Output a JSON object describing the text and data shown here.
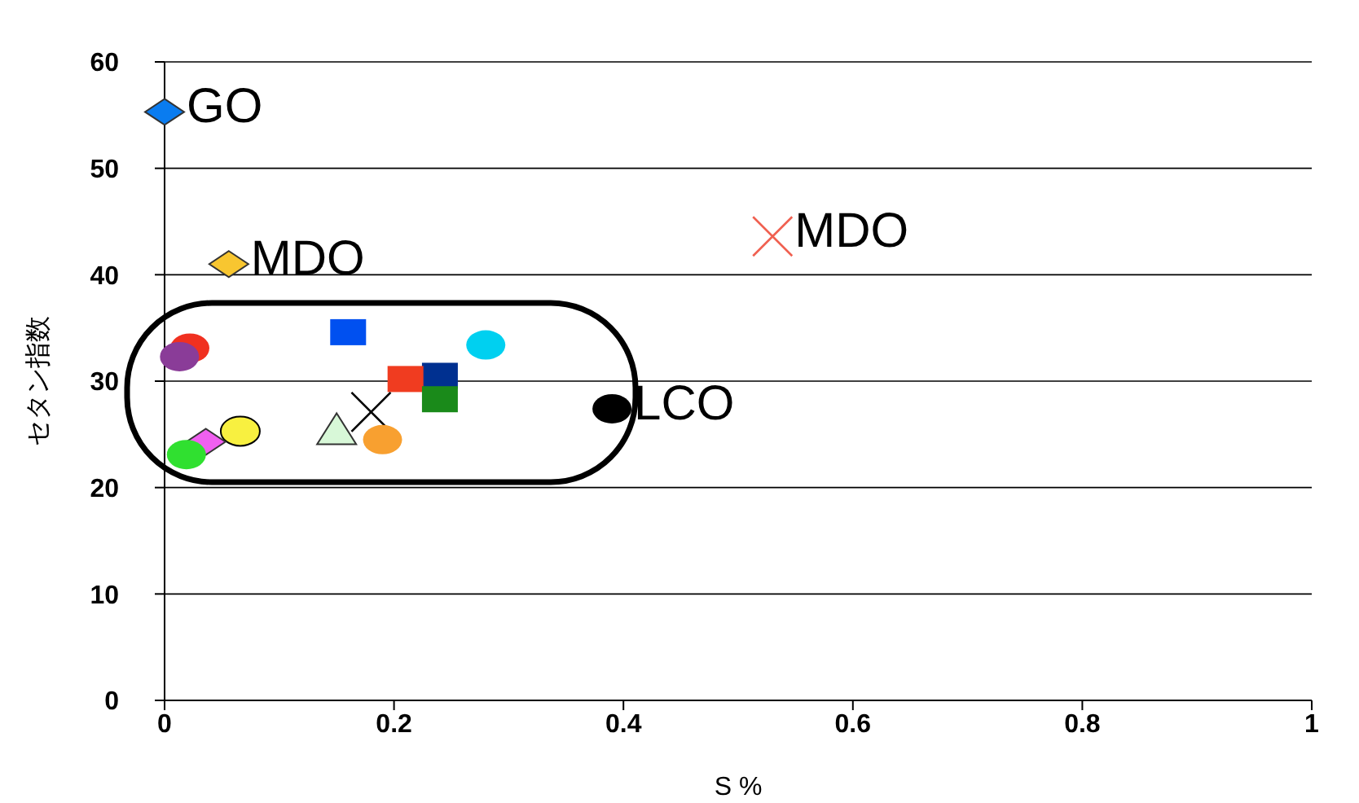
{
  "chart_data": {
    "type": "scatter",
    "xlabel": "S %",
    "ylabel": "セタン指数",
    "xlim": [
      0,
      1
    ],
    "xticks": [
      0,
      0.2,
      0.4,
      0.6,
      0.8,
      1
    ],
    "ylim": [
      0,
      60
    ],
    "yticks": [
      0,
      10,
      20,
      30,
      40,
      50,
      60
    ],
    "grid": "y",
    "legend": false,
    "series": [
      {
        "name": "GO",
        "color": "#0a7cf0",
        "marker": "diamond",
        "x": [
          0
        ],
        "values": [
          55.3
        ]
      },
      {
        "name": "MDO",
        "color": "#f8c630",
        "marker": "diamond",
        "x": [
          0.056
        ],
        "values": [
          41
        ]
      },
      {
        "name": "MDO",
        "color": "#f06050",
        "marker": "cross",
        "x": [
          0.53
        ],
        "values": [
          43.6
        ]
      },
      {
        "name": "LCO",
        "color": "#000000",
        "marker": "circle",
        "x": [
          0.39
        ],
        "values": [
          27.4
        ]
      },
      {
        "color": "#f03020",
        "marker": "circle",
        "x": [
          0.022
        ],
        "values": [
          33.1
        ]
      },
      {
        "color": "#8a3c98",
        "marker": "circle",
        "x": [
          0.013
        ],
        "values": [
          32.3
        ]
      },
      {
        "color": "#0050f0",
        "marker": "square",
        "x": [
          0.16
        ],
        "values": [
          34.6
        ]
      },
      {
        "color": "#00d0f0",
        "marker": "circle",
        "x": [
          0.28
        ],
        "values": [
          33.4
        ]
      },
      {
        "color": "#003090",
        "marker": "square",
        "x": [
          0.24
        ],
        "values": [
          30.5
        ]
      },
      {
        "color": "#f03c20",
        "marker": "square",
        "x": [
          0.21
        ],
        "values": [
          30.2
        ]
      },
      {
        "color": "#1a8a1a",
        "marker": "square",
        "x": [
          0.24
        ],
        "values": [
          28.3
        ]
      },
      {
        "color": "#000000",
        "marker": "cross",
        "x": [
          0.18
        ],
        "values": [
          27.1
        ]
      },
      {
        "color": "#f8f040",
        "marker": "circle",
        "x": [
          0.066
        ],
        "values": [
          25.3
        ]
      },
      {
        "color": "#f060f0",
        "marker": "diamond",
        "x": [
          0.036
        ],
        "values": [
          24.3
        ]
      },
      {
        "color": "#30e030",
        "marker": "circle",
        "x": [
          0.019
        ],
        "values": [
          23.1
        ]
      },
      {
        "color": "#d8f8d8",
        "marker": "triangle",
        "x": [
          0.15
        ],
        "values": [
          25.3
        ]
      },
      {
        "color": "#f8a030",
        "marker": "circle",
        "x": [
          0.19
        ],
        "values": [
          24.5
        ]
      }
    ]
  }
}
